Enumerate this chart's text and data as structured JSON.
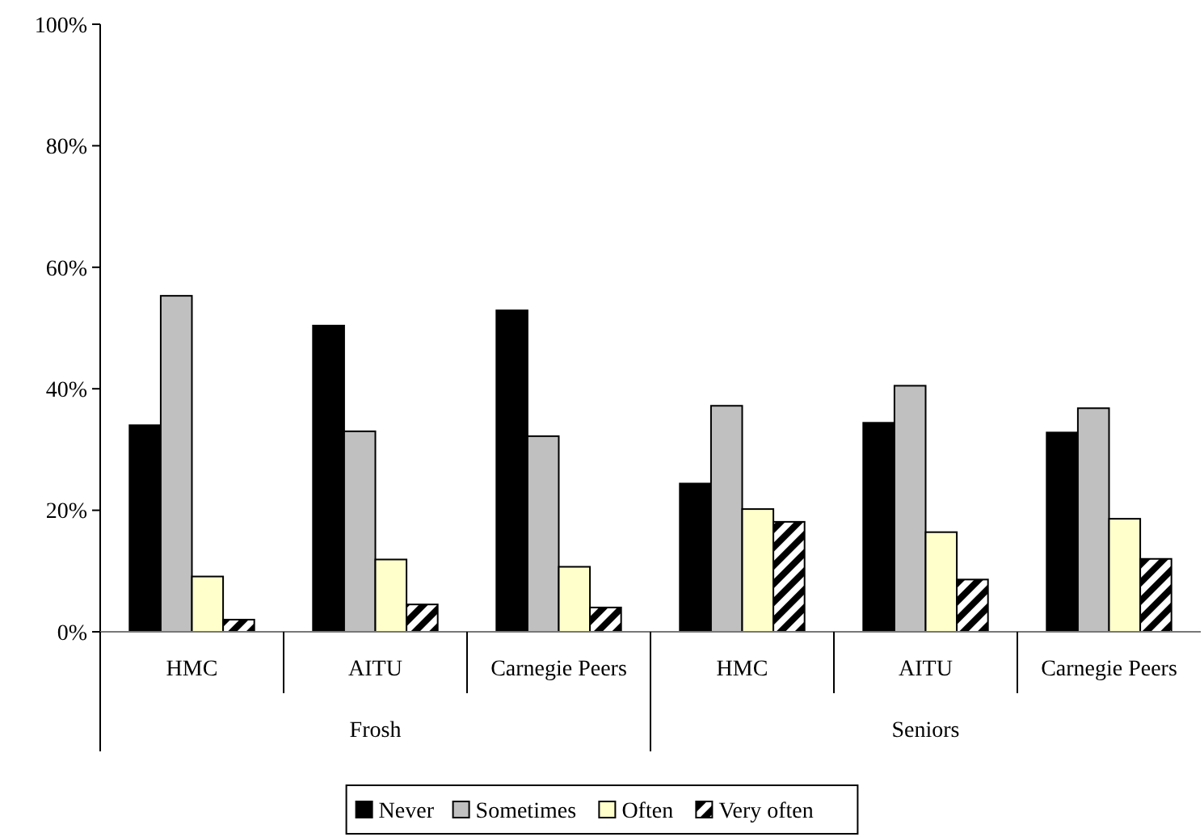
{
  "chart_data": {
    "type": "bar",
    "categories": [
      "HMC",
      "AITU",
      "Carnegie Peers",
      "HMC",
      "AITU",
      "Carnegie Peers"
    ],
    "series": [
      {
        "name": "Never",
        "color": "#000000",
        "values": [
          34,
          50.4,
          52.9,
          24.4,
          34.4,
          32.8
        ]
      },
      {
        "name": "Sometimes",
        "color": "#c0c0c0",
        "values": [
          55.3,
          33,
          32.2,
          37.2,
          40.5,
          36.8
        ]
      },
      {
        "name": "Often",
        "color": "#ffffcc",
        "values": [
          9.1,
          11.9,
          10.7,
          20.2,
          16.4,
          18.6
        ]
      },
      {
        "name": "Very often",
        "color": "#000000",
        "values": [
          2,
          4.5,
          4,
          18.1,
          8.6,
          12
        ]
      }
    ],
    "annotations": [
      "Frosh",
      "Seniors"
    ],
    "ylim": [
      0,
      100
    ],
    "yticks": [
      {
        "value": 0,
        "label": "0%"
      },
      {
        "value": 20,
        "label": "20%"
      },
      {
        "value": 40,
        "label": "40%"
      },
      {
        "value": 60,
        "label": "60%"
      },
      {
        "value": 80,
        "label": "80%"
      },
      {
        "value": 100,
        "label": "100%"
      }
    ],
    "grid": false,
    "legend": "bottom"
  }
}
